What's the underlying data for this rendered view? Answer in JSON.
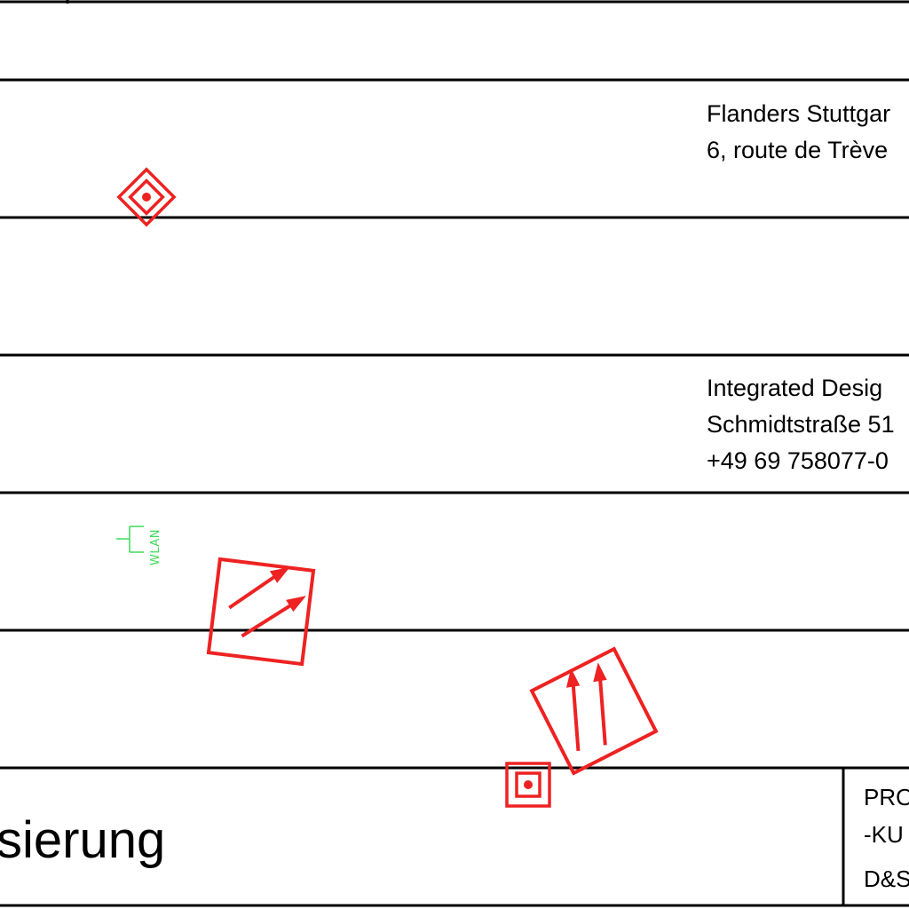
{
  "title_block": {
    "row2": {
      "line1": "Flanders Stuttgar",
      "line2": "6, route de Trève"
    },
    "row4": {
      "line1": "Integrated Desig",
      "line2": "Schmidtstraße 51",
      "line3": "+49 69 758077-0"
    },
    "title_fragment": "sierung",
    "right_box": {
      "line1": "PRO",
      "line2": "-KU",
      "line3": "D&S"
    }
  },
  "symbols": {
    "wlan_label": "WLAN",
    "colors": {
      "fire_symbol": "#ee2222",
      "wlan": "#3ddc5a",
      "lines": "#000000"
    },
    "icons": [
      "smoke-detector-icon",
      "escape-route-arrow-icon",
      "wlan-access-point-icon"
    ]
  }
}
